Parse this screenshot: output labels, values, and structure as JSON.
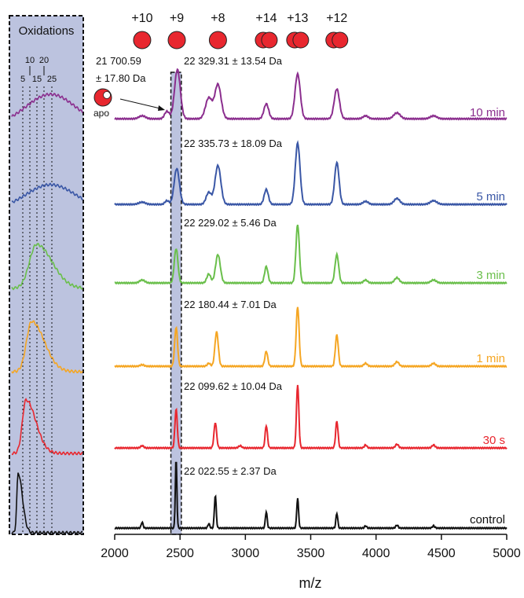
{
  "chart_data": {
    "type": "line",
    "xlabel": "m/z",
    "ylabel": "",
    "xlim": [
      2000,
      5000
    ],
    "x_ticks": [
      "2000",
      "2500",
      "3000",
      "3500",
      "4000",
      "4500",
      "5000"
    ],
    "highlight_range": [
      2430,
      2510
    ],
    "charge_states": [
      {
        "label": "+10",
        "mz": 2210,
        "balls": 1
      },
      {
        "label": "+9",
        "mz": 2475,
        "balls": 1
      },
      {
        "label": "+8",
        "mz": 2790,
        "balls": 1
      },
      {
        "label": "+14",
        "mz": 3160,
        "balls": 2
      },
      {
        "label": "+13",
        "mz": 3400,
        "balls": 2
      },
      {
        "label": "+12",
        "mz": 3700,
        "balls": 2
      }
    ],
    "apo_annotation": {
      "mass_line1": "21 700.59",
      "mass_line2": "± 17.80 Da",
      "label": "apo"
    },
    "series": [
      {
        "name": "10 min",
        "color": "#8B2E8E",
        "mass": "22 329.31 ± 13.54 Da",
        "peaks": [
          [
            2210,
            0.04,
            25
          ],
          [
            2400,
            0.1,
            18
          ],
          [
            2480,
            0.66,
            22
          ],
          [
            2720,
            0.28,
            25
          ],
          [
            2790,
            0.46,
            24
          ],
          [
            3160,
            0.2,
            18
          ],
          [
            3400,
            0.6,
            20
          ],
          [
            3700,
            0.4,
            20
          ],
          [
            3920,
            0.04,
            20
          ],
          [
            4160,
            0.08,
            25
          ],
          [
            4440,
            0.04,
            25
          ]
        ],
        "baseline": 0.04
      },
      {
        "name": "5 min",
        "color": "#3A57A6",
        "mass": "22 335.73 ± 18.09 Da",
        "peaks": [
          [
            2210,
            0.03,
            25
          ],
          [
            2400,
            0.05,
            15
          ],
          [
            2475,
            0.48,
            20
          ],
          [
            2720,
            0.16,
            20
          ],
          [
            2790,
            0.52,
            22
          ],
          [
            3160,
            0.2,
            16
          ],
          [
            3400,
            0.82,
            18
          ],
          [
            3700,
            0.56,
            17
          ],
          [
            3920,
            0.04,
            20
          ],
          [
            4160,
            0.08,
            22
          ],
          [
            4440,
            0.05,
            25
          ]
        ],
        "baseline": 0.02
      },
      {
        "name": "3 min",
        "color": "#6ABF4B",
        "mass": "22 229.02 ± 5.46 Da",
        "peaks": [
          [
            2210,
            0.04,
            20
          ],
          [
            2470,
            0.46,
            14
          ],
          [
            2720,
            0.12,
            15
          ],
          [
            2790,
            0.38,
            18
          ],
          [
            3160,
            0.22,
            13
          ],
          [
            3400,
            0.78,
            13
          ],
          [
            3700,
            0.38,
            14
          ],
          [
            3920,
            0.04,
            15
          ],
          [
            4160,
            0.07,
            18
          ],
          [
            4440,
            0.04,
            20
          ]
        ],
        "baseline": 0.02
      },
      {
        "name": "1 min",
        "color": "#F5A623",
        "mass": "22 180.44 ± 7.01 Da",
        "peaks": [
          [
            2210,
            0.02,
            15
          ],
          [
            2470,
            0.52,
            11
          ],
          [
            2720,
            0.04,
            12
          ],
          [
            2780,
            0.46,
            13
          ],
          [
            3160,
            0.2,
            11
          ],
          [
            3400,
            0.8,
            11
          ],
          [
            3700,
            0.42,
            11
          ],
          [
            3920,
            0.04,
            13
          ],
          [
            4160,
            0.06,
            15
          ],
          [
            4440,
            0.04,
            15
          ]
        ],
        "baseline": 0.02
      },
      {
        "name": "30 s",
        "color": "#E8272F",
        "mass": "22 099.62 ± 10.04 Da",
        "peaks": [
          [
            2210,
            0.03,
            12
          ],
          [
            2470,
            0.52,
            9
          ],
          [
            2770,
            0.34,
            10
          ],
          [
            2960,
            0.03,
            12
          ],
          [
            3160,
            0.3,
            9
          ],
          [
            3400,
            0.85,
            9
          ],
          [
            3700,
            0.36,
            9
          ],
          [
            3920,
            0.04,
            10
          ],
          [
            4160,
            0.05,
            12
          ],
          [
            4440,
            0.04,
            12
          ]
        ],
        "baseline": 0.02
      },
      {
        "name": "control",
        "color": "#111111",
        "mass": "22 022.55 ± 2.37 Da",
        "peaks": [
          [
            2210,
            0.08,
            7
          ],
          [
            2470,
            0.92,
            6
          ],
          [
            2720,
            0.06,
            7
          ],
          [
            2770,
            0.44,
            7
          ],
          [
            3160,
            0.22,
            7
          ],
          [
            3400,
            0.4,
            7
          ],
          [
            3700,
            0.2,
            7
          ],
          [
            3920,
            0.03,
            8
          ],
          [
            4160,
            0.04,
            9
          ],
          [
            4440,
            0.03,
            9
          ]
        ],
        "baseline": 0.01
      }
    ],
    "inset": {
      "title": "Oxidations",
      "tick_top": [
        "10",
        "20"
      ],
      "tick_bottom": [
        "5",
        "15",
        "25"
      ],
      "bg_color": "#BCC3DF",
      "profiles": [
        {
          "series": "10 min",
          "center": 0.55,
          "width": 0.35,
          "height": 0.5,
          "skew": 0
        },
        {
          "series": "5 min",
          "center": 0.55,
          "width": 0.35,
          "height": 0.4,
          "skew": 0
        },
        {
          "series": "3 min",
          "center": 0.35,
          "width": 0.22,
          "height": 0.7,
          "skew": 1.2
        },
        {
          "series": "1 min",
          "center": 0.28,
          "width": 0.18,
          "height": 0.8,
          "skew": 1.5
        },
        {
          "series": "30 s",
          "center": 0.2,
          "width": 0.14,
          "height": 0.85,
          "skew": 1.8
        },
        {
          "series": "control",
          "center": 0.09,
          "width": 0.06,
          "height": 0.95,
          "skew": 2.2
        }
      ]
    }
  }
}
